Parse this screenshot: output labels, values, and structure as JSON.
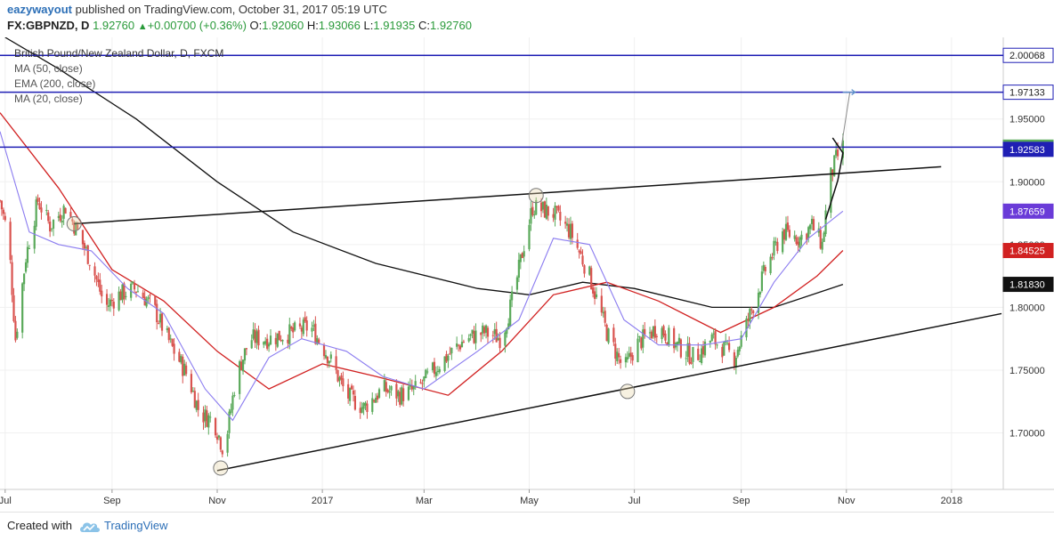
{
  "header": {
    "author": "eazywayout",
    "published_text": "published on TradingView.com, October 31, 2017 05:19 UTC",
    "symbol": "FX:GBPNZD, D",
    "last": "1.92760",
    "change": "+0.00700 (+0.36%)",
    "o_label": "O:",
    "o": "1.92060",
    "h_label": "H:",
    "h": "1.93066",
    "l_label": "L:",
    "l": "1.91935",
    "c_label": "C:",
    "c": "1.92760"
  },
  "legend": {
    "title": "British Pound/New Zealand Dollar, D, FXCM",
    "ma50": "MA (50, close)",
    "ema200": "EMA (200, close)",
    "ma20": "MA (20, close)"
  },
  "footer": {
    "created_with": "Created with",
    "brand": "TradingView"
  },
  "colors": {
    "up": "#5aa95a",
    "down": "#d9534f",
    "ma20": "#8b7cf0",
    "ma50": "#d12121",
    "ema200": "#111111",
    "hline": "#1f1fb4",
    "trend": "#111111"
  },
  "chart_data": {
    "type": "candlestick",
    "title": "British Pound/New Zealand Dollar, D, FXCM",
    "y_range": [
      1.655,
      2.015
    ],
    "x_range": [
      "2016-06-28",
      "2018-01-31"
    ],
    "x_ticks": [
      {
        "date": "2016-07-01",
        "label": "Jul"
      },
      {
        "date": "2016-09-01",
        "label": "Sep"
      },
      {
        "date": "2016-11-01",
        "label": "Nov"
      },
      {
        "date": "2017-01-01",
        "label": "2017"
      },
      {
        "date": "2017-03-01",
        "label": "Mar"
      },
      {
        "date": "2017-05-01",
        "label": "May"
      },
      {
        "date": "2017-07-01",
        "label": "Jul"
      },
      {
        "date": "2017-09-01",
        "label": "Sep"
      },
      {
        "date": "2017-11-01",
        "label": "Nov"
      },
      {
        "date": "2018-01-01",
        "label": "2018"
      }
    ],
    "y_ticks": [
      {
        "value": 1.7,
        "label": "1.70000"
      },
      {
        "value": 1.75,
        "label": "1.75000"
      },
      {
        "value": 1.8,
        "label": "1.80000"
      },
      {
        "value": 1.85,
        "label": "1.85000"
      },
      {
        "value": 1.9,
        "label": "1.90000"
      },
      {
        "value": 1.95,
        "label": "1.95000"
      }
    ],
    "price_badges": [
      {
        "value": 2.00068,
        "label": "2.00068",
        "style": "outline"
      },
      {
        "value": 1.97133,
        "label": "1.97133",
        "style": "outline"
      },
      {
        "value": 1.9276,
        "label": "1.92760",
        "style": "green"
      },
      {
        "value": 1.92583,
        "label": "1.92583",
        "style": "blue"
      },
      {
        "value": 1.87659,
        "label": "1.87659",
        "style": "purple"
      },
      {
        "value": 1.84525,
        "label": "1.84525",
        "style": "red"
      },
      {
        "value": 1.8183,
        "label": "1.81830",
        "style": "black"
      }
    ],
    "horizontal_lines": [
      2.00068,
      1.97133,
      1.9276
    ],
    "trendlines": [
      {
        "from": [
          "2016-08-10",
          1.8665
        ],
        "to": [
          "2017-12-26",
          1.912
        ]
      },
      {
        "from": [
          "2016-11-01",
          1.67
        ],
        "to": [
          "2018-01-30",
          1.795
        ]
      }
    ],
    "pivots": [
      {
        "date": "2016-08-10",
        "value": 1.8665
      },
      {
        "date": "2016-11-03",
        "value": 1.672
      },
      {
        "date": "2017-05-05",
        "value": 1.889
      },
      {
        "date": "2017-06-27",
        "value": 1.733
      }
    ],
    "projection": [
      [
        "2017-10-29",
        1.927
      ],
      [
        "2017-11-03",
        1.97133
      ]
    ],
    "pennant": [
      [
        "2017-10-24",
        1.935
      ],
      [
        "2017-10-30",
        1.923
      ],
      [
        "2017-10-27",
        1.901
      ],
      [
        "2017-10-20",
        1.87
      ]
    ],
    "price_path": [
      [
        "2016-06-28",
        1.885
      ],
      [
        "2016-07-03",
        1.855
      ],
      [
        "2016-07-07",
        1.775
      ],
      [
        "2016-07-13",
        1.84
      ],
      [
        "2016-07-20",
        1.885
      ],
      [
        "2016-07-27",
        1.865
      ],
      [
        "2016-08-05",
        1.88
      ],
      [
        "2016-08-12",
        1.86
      ],
      [
        "2016-08-20",
        1.835
      ],
      [
        "2016-08-28",
        1.8
      ],
      [
        "2016-09-05",
        1.81
      ],
      [
        "2016-09-15",
        1.815
      ],
      [
        "2016-09-25",
        1.8
      ],
      [
        "2016-10-05",
        1.77
      ],
      [
        "2016-10-15",
        1.745
      ],
      [
        "2016-10-22",
        1.715
      ],
      [
        "2016-10-30",
        1.71
      ],
      [
        "2016-11-05",
        1.685
      ],
      [
        "2016-11-12",
        1.745
      ],
      [
        "2016-11-20",
        1.775
      ],
      [
        "2016-12-01",
        1.775
      ],
      [
        "2016-12-15",
        1.78
      ],
      [
        "2016-12-25",
        1.785
      ],
      [
        "2017-01-05",
        1.76
      ],
      [
        "2017-01-15",
        1.73
      ],
      [
        "2017-01-25",
        1.72
      ],
      [
        "2017-02-05",
        1.735
      ],
      [
        "2017-02-15",
        1.73
      ],
      [
        "2017-02-25",
        1.735
      ],
      [
        "2017-03-10",
        1.755
      ],
      [
        "2017-03-25",
        1.775
      ],
      [
        "2017-04-05",
        1.78
      ],
      [
        "2017-04-15",
        1.775
      ],
      [
        "2017-04-22",
        1.81
      ],
      [
        "2017-04-28",
        1.85
      ],
      [
        "2017-05-03",
        1.88
      ],
      [
        "2017-05-15",
        1.875
      ],
      [
        "2017-05-25",
        1.86
      ],
      [
        "2017-06-05",
        1.825
      ],
      [
        "2017-06-15",
        1.78
      ],
      [
        "2017-06-25",
        1.75
      ],
      [
        "2017-07-02",
        1.77
      ],
      [
        "2017-07-15",
        1.785
      ],
      [
        "2017-07-25",
        1.77
      ],
      [
        "2017-08-05",
        1.76
      ],
      [
        "2017-08-15",
        1.775
      ],
      [
        "2017-08-28",
        1.76
      ],
      [
        "2017-09-05",
        1.79
      ],
      [
        "2017-09-15",
        1.83
      ],
      [
        "2017-09-25",
        1.86
      ],
      [
        "2017-10-05",
        1.855
      ],
      [
        "2017-10-12",
        1.865
      ],
      [
        "2017-10-18",
        1.85
      ],
      [
        "2017-10-22",
        1.9
      ],
      [
        "2017-10-26",
        1.918
      ],
      [
        "2017-10-30",
        1.9276
      ]
    ],
    "ma20_path": [
      [
        "2016-06-28",
        1.94
      ],
      [
        "2016-07-15",
        1.86
      ],
      [
        "2016-08-01",
        1.85
      ],
      [
        "2016-08-20",
        1.845
      ],
      [
        "2016-09-10",
        1.815
      ],
      [
        "2016-10-01",
        1.795
      ],
      [
        "2016-10-25",
        1.735
      ],
      [
        "2016-11-10",
        1.71
      ],
      [
        "2016-12-01",
        1.76
      ],
      [
        "2016-12-20",
        1.775
      ],
      [
        "2017-01-15",
        1.765
      ],
      [
        "2017-02-05",
        1.745
      ],
      [
        "2017-03-01",
        1.735
      ],
      [
        "2017-04-01",
        1.765
      ],
      [
        "2017-04-25",
        1.79
      ],
      [
        "2017-05-15",
        1.855
      ],
      [
        "2017-06-05",
        1.85
      ],
      [
        "2017-06-25",
        1.79
      ],
      [
        "2017-07-15",
        1.77
      ],
      [
        "2017-08-10",
        1.77
      ],
      [
        "2017-09-01",
        1.775
      ],
      [
        "2017-09-20",
        1.82
      ],
      [
        "2017-10-10",
        1.855
      ],
      [
        "2017-10-30",
        1.8766
      ]
    ],
    "ma50_path": [
      [
        "2016-06-28",
        1.955
      ],
      [
        "2016-08-01",
        1.895
      ],
      [
        "2016-09-01",
        1.83
      ],
      [
        "2016-10-01",
        1.805
      ],
      [
        "2016-11-01",
        1.765
      ],
      [
        "2016-12-01",
        1.735
      ],
      [
        "2017-01-01",
        1.755
      ],
      [
        "2017-02-01",
        1.745
      ],
      [
        "2017-03-15",
        1.73
      ],
      [
        "2017-04-15",
        1.765
      ],
      [
        "2017-05-15",
        1.81
      ],
      [
        "2017-06-15",
        1.82
      ],
      [
        "2017-07-15",
        1.805
      ],
      [
        "2017-08-20",
        1.78
      ],
      [
        "2017-09-20",
        1.8
      ],
      [
        "2017-10-15",
        1.825
      ],
      [
        "2017-10-30",
        1.8453
      ]
    ],
    "ema200_path": [
      [
        "2016-07-01",
        2.015
      ],
      [
        "2016-08-01",
        1.99
      ],
      [
        "2016-09-15",
        1.95
      ],
      [
        "2016-11-01",
        1.9
      ],
      [
        "2016-12-15",
        1.86
      ],
      [
        "2017-02-01",
        1.835
      ],
      [
        "2017-04-01",
        1.815
      ],
      [
        "2017-05-01",
        1.81
      ],
      [
        "2017-06-01",
        1.82
      ],
      [
        "2017-07-01",
        1.815
      ],
      [
        "2017-08-15",
        1.8
      ],
      [
        "2017-09-20",
        1.8
      ],
      [
        "2017-10-30",
        1.8183
      ]
    ]
  }
}
